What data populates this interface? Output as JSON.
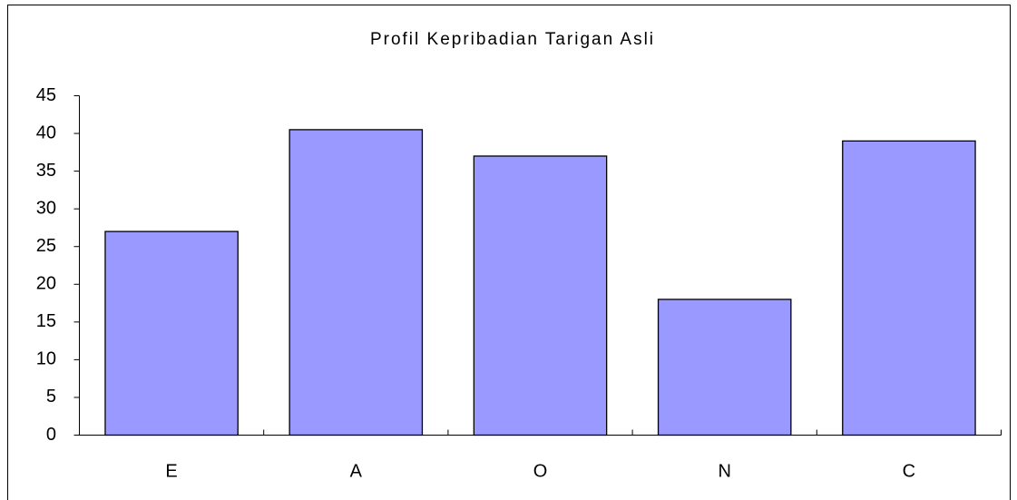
{
  "chart_data": {
    "type": "bar",
    "title": "Profil Kepribadian Tarigan Asli",
    "categories": [
      "E",
      "A",
      "O",
      "N",
      "C"
    ],
    "values": [
      27,
      40.5,
      37,
      18,
      39
    ],
    "color": "#9999ff",
    "ylim": [
      0,
      45
    ],
    "yticks": [
      0,
      5,
      10,
      15,
      20,
      25,
      30,
      35,
      40,
      45
    ],
    "grid": false
  }
}
